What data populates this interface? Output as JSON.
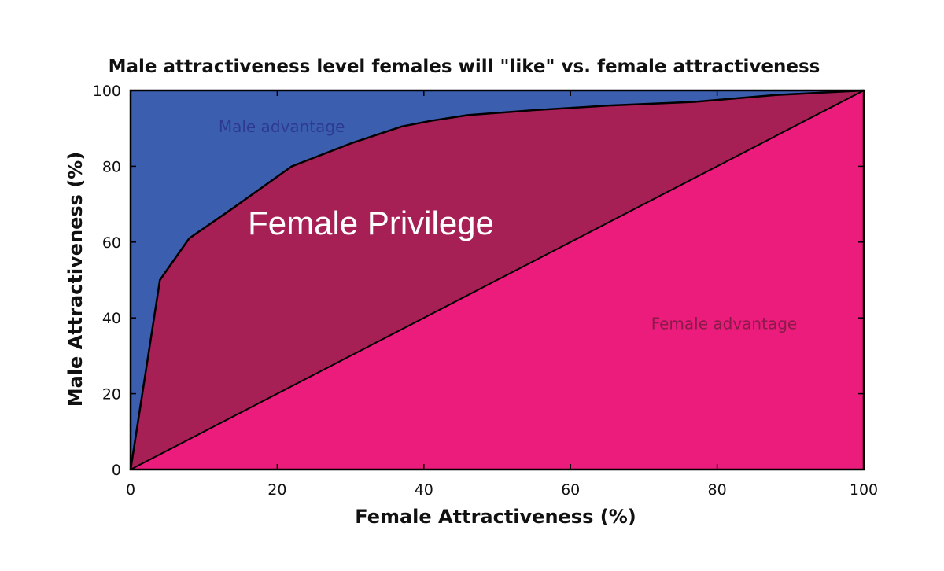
{
  "chart_data": {
    "type": "area",
    "title": "Male attractiveness level females will \"like\" vs. female attractiveness",
    "xlabel": "Female Attractiveness (%)",
    "ylabel": "Male Attractiveness (%)",
    "xlim": [
      0,
      100
    ],
    "ylim": [
      0,
      100
    ],
    "xticks": [
      0,
      20,
      40,
      60,
      80,
      100
    ],
    "yticks": [
      0,
      20,
      40,
      60,
      80,
      100
    ],
    "grid": false,
    "series": [
      {
        "x": [
          0,
          4,
          8,
          14,
          22,
          30,
          37,
          41,
          46,
          55,
          65,
          77,
          88,
          100
        ],
        "y": [
          0,
          50,
          61,
          69,
          80,
          86,
          90.5,
          92,
          93.5,
          94.8,
          96,
          97,
          98.8,
          100
        ]
      },
      {
        "x": [
          0,
          100
        ],
        "y": [
          0,
          100
        ]
      }
    ],
    "regions": [
      {
        "label": "Male advantage",
        "x": 12,
        "y": 89,
        "color": "#3a5ba8",
        "fill": "#3b5fae",
        "text_color": "#2e3a90"
      },
      {
        "label": "Female Privilege",
        "x": 16,
        "y": 62,
        "color": "#ffffff",
        "fill": "#a61f55"
      },
      {
        "label": "Female advantage",
        "x": 71,
        "y": 37,
        "color": "#8a1a4a",
        "fill": "#ec1c7c",
        "text_color": "#8a1a4a"
      }
    ]
  }
}
